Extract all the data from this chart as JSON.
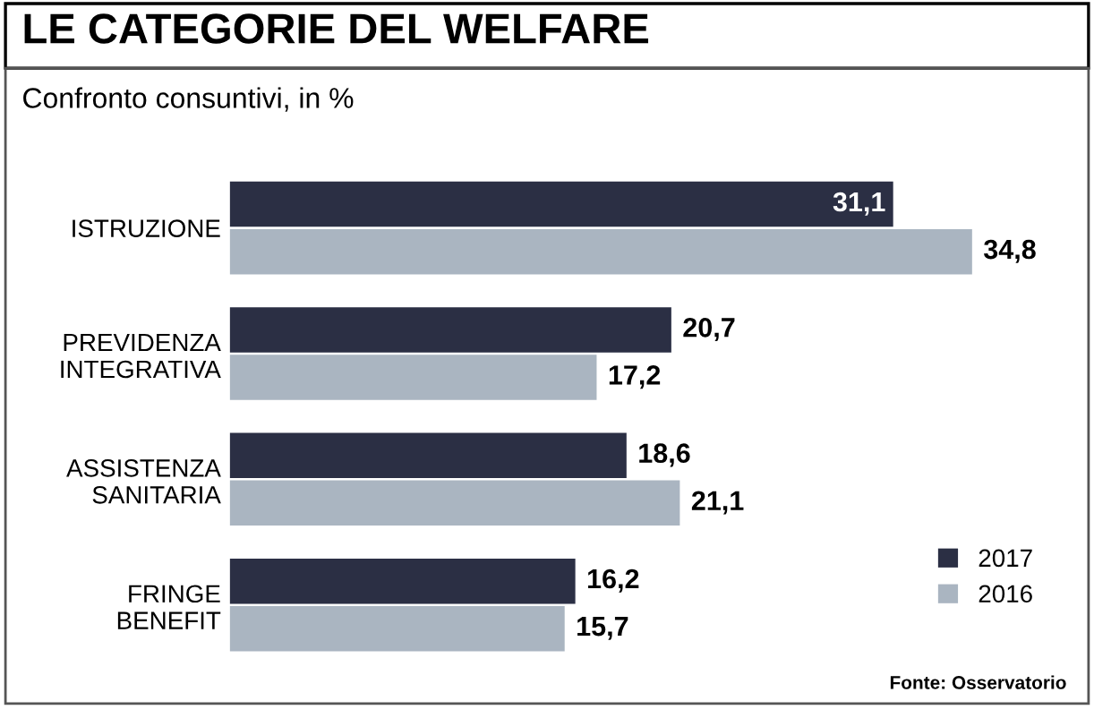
{
  "chart_data": {
    "type": "bar",
    "orientation": "horizontal",
    "title": "LE CATEGORIE DEL WELFARE",
    "subtitle": "Confronto consuntivi, in %",
    "categories": [
      "ISTRUZIONE",
      "PREVIDENZA\nINTEGRATIVA",
      "ASSISTENZA\nSANITARIA",
      "FRINGE\nBENEFIT"
    ],
    "series": [
      {
        "name": "2017",
        "color": "#2b2f44",
        "values": [
          31.1,
          20.7,
          18.6,
          16.2
        ],
        "value_labels": [
          "31,1",
          "20,7",
          "18,6",
          "16,2"
        ]
      },
      {
        "name": "2016",
        "color": "#aab5c1",
        "values": [
          34.8,
          17.2,
          21.1,
          15.7
        ],
        "value_labels": [
          "34,8",
          "17,2",
          "21,1",
          "15,7"
        ]
      }
    ],
    "legend": "bottom right",
    "annotations": [
      "Fonte: Osservatorio"
    ]
  }
}
